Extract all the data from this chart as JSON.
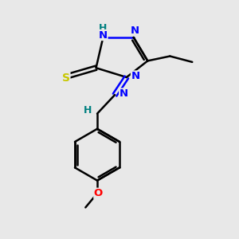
{
  "background_color": "#e8e8e8",
  "atom_colors": {
    "N": "#0000ff",
    "S": "#c8c800",
    "O": "#ff0000",
    "C": "#000000",
    "H": "#008080"
  },
  "bond_color": "#000000",
  "bond_lw": 1.8,
  "figsize": [
    3.0,
    3.0
  ],
  "dpi": 100
}
